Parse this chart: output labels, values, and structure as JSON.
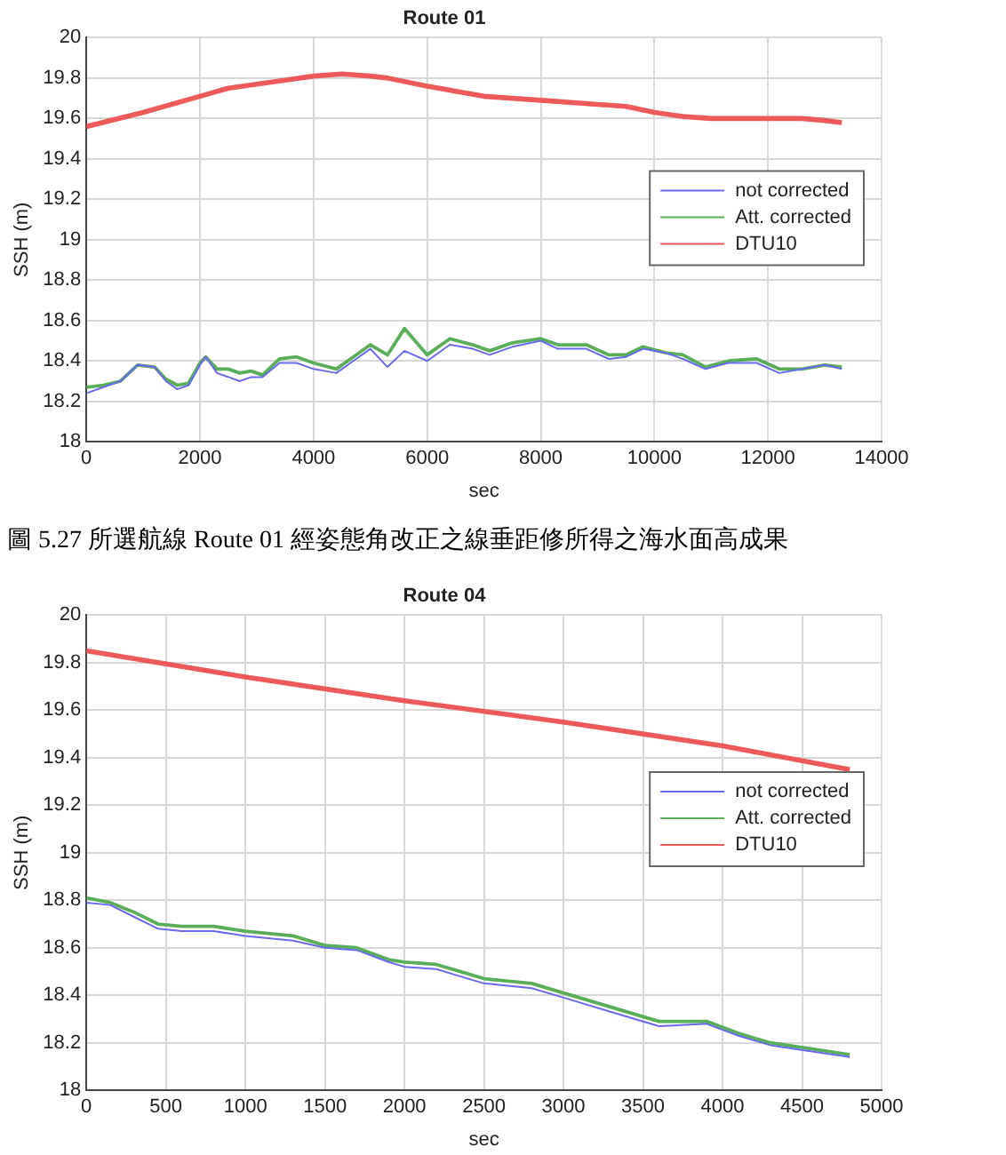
{
  "chart_data": [
    {
      "type": "line",
      "title": "Route 01",
      "xlabel": "sec",
      "ylabel": "SSH (m)",
      "xlim": [
        0,
        14000
      ],
      "xticks": [
        0,
        2000,
        4000,
        6000,
        8000,
        10000,
        12000,
        14000
      ],
      "ylim": [
        18,
        20
      ],
      "yticks": [
        18,
        18.2,
        18.4,
        18.6,
        18.8,
        19,
        19.2,
        19.4,
        19.6,
        19.8,
        20
      ],
      "grid": true,
      "legend": "right",
      "marker": "none",
      "line_style": "solid",
      "annotations": [
        "圖 5.27 所選航線 Route 01 經姿態角改正之線垂距修所得之海水面高成果"
      ],
      "series": [
        {
          "name": "not corrected",
          "color": "#6a6aee",
          "x": [
            0,
            300,
            600,
            900,
            1200,
            1400,
            1600,
            1800,
            2000,
            2100,
            2300,
            2500,
            2700,
            2900,
            3100,
            3400,
            3700,
            4000,
            4400,
            4700,
            5000,
            5300,
            5600,
            6000,
            6400,
            6800,
            7100,
            7500,
            8000,
            8300,
            8800,
            9200,
            9500,
            9800,
            10200,
            10500,
            10900,
            11300,
            11800,
            12200,
            12600,
            13000,
            13300
          ],
          "values": [
            18.24,
            18.27,
            18.3,
            18.38,
            18.37,
            18.3,
            18.26,
            18.28,
            18.38,
            18.42,
            18.34,
            18.32,
            18.3,
            18.32,
            18.32,
            18.39,
            18.39,
            18.36,
            18.34,
            18.4,
            18.46,
            18.37,
            18.45,
            18.4,
            18.48,
            18.46,
            18.43,
            18.47,
            18.5,
            18.46,
            18.46,
            18.41,
            18.42,
            18.46,
            18.44,
            18.41,
            18.36,
            18.39,
            18.39,
            18.34,
            18.36,
            18.38,
            18.36
          ]
        },
        {
          "name": "Att. corrected",
          "color": "#5aae5a",
          "x": [
            0,
            300,
            600,
            900,
            1200,
            1400,
            1600,
            1800,
            2000,
            2100,
            2300,
            2500,
            2700,
            2900,
            3100,
            3400,
            3700,
            4000,
            4400,
            4700,
            5000,
            5300,
            5600,
            6000,
            6400,
            6800,
            7100,
            7500,
            8000,
            8300,
            8800,
            9200,
            9500,
            9800,
            10200,
            10500,
            10900,
            11300,
            11800,
            12200,
            12600,
            13000,
            13300
          ],
          "values": [
            18.27,
            18.28,
            18.3,
            18.38,
            18.37,
            18.31,
            18.28,
            18.29,
            18.39,
            18.42,
            18.36,
            18.36,
            18.34,
            18.35,
            18.33,
            18.41,
            18.42,
            18.39,
            18.36,
            18.42,
            18.48,
            18.43,
            18.56,
            18.43,
            18.51,
            18.48,
            18.45,
            18.49,
            18.51,
            18.48,
            18.48,
            18.43,
            18.43,
            18.47,
            18.44,
            18.43,
            18.37,
            18.4,
            18.41,
            18.36,
            18.36,
            18.38,
            18.37
          ]
        },
        {
          "name": "DTU10",
          "color": "#ee5a5a",
          "x": [
            0,
            1000,
            2000,
            2500,
            3000,
            3500,
            4000,
            4500,
            5000,
            5300,
            6000,
            7000,
            8000,
            9000,
            9500,
            10000,
            10500,
            11000,
            12000,
            12600,
            13000,
            13300
          ],
          "values": [
            19.56,
            19.63,
            19.71,
            19.75,
            19.77,
            19.79,
            19.81,
            19.82,
            19.81,
            19.8,
            19.76,
            19.71,
            19.69,
            19.67,
            19.66,
            19.63,
            19.61,
            19.6,
            19.6,
            19.6,
            19.59,
            19.58
          ]
        }
      ]
    },
    {
      "type": "line",
      "title": "Route 04",
      "xlabel": "sec",
      "ylabel": "SSH (m)",
      "xlim": [
        0,
        5000
      ],
      "xticks": [
        0,
        500,
        1000,
        1500,
        2000,
        2500,
        3000,
        3500,
        4000,
        4500,
        5000
      ],
      "ylim": [
        18,
        20
      ],
      "yticks": [
        18,
        18.2,
        18.4,
        18.6,
        18.8,
        19,
        19.2,
        19.4,
        19.6,
        19.8,
        20
      ],
      "grid": true,
      "legend": "right",
      "marker": "none",
      "line_style": "solid",
      "series": [
        {
          "name": "not corrected",
          "color": "#6a6aee",
          "x": [
            0,
            150,
            300,
            450,
            600,
            800,
            1000,
            1300,
            1500,
            1700,
            1900,
            2000,
            2200,
            2500,
            2800,
            3000,
            3300,
            3600,
            3900,
            4100,
            4300,
            4600,
            4800
          ],
          "values": [
            18.79,
            18.78,
            18.73,
            18.68,
            18.67,
            18.67,
            18.65,
            18.63,
            18.6,
            18.59,
            18.54,
            18.52,
            18.51,
            18.45,
            18.43,
            18.39,
            18.33,
            18.27,
            18.28,
            18.23,
            18.19,
            18.16,
            18.14
          ]
        },
        {
          "name": "Att. corrected",
          "color": "#5aae5a",
          "x": [
            0,
            150,
            300,
            450,
            600,
            800,
            1000,
            1300,
            1500,
            1700,
            1900,
            2000,
            2200,
            2500,
            2800,
            3000,
            3300,
            3600,
            3900,
            4100,
            4300,
            4600,
            4800
          ],
          "values": [
            18.81,
            18.79,
            18.75,
            18.7,
            18.69,
            18.69,
            18.67,
            18.65,
            18.61,
            18.6,
            18.55,
            18.54,
            18.53,
            18.47,
            18.45,
            18.41,
            18.35,
            18.29,
            18.29,
            18.24,
            18.2,
            18.17,
            18.15
          ]
        },
        {
          "name": "DTU10",
          "color": "#ee5a5a",
          "x": [
            0,
            1000,
            2000,
            3000,
            4000,
            4800
          ],
          "values": [
            19.85,
            19.74,
            19.64,
            19.55,
            19.45,
            19.35
          ]
        }
      ]
    }
  ]
}
